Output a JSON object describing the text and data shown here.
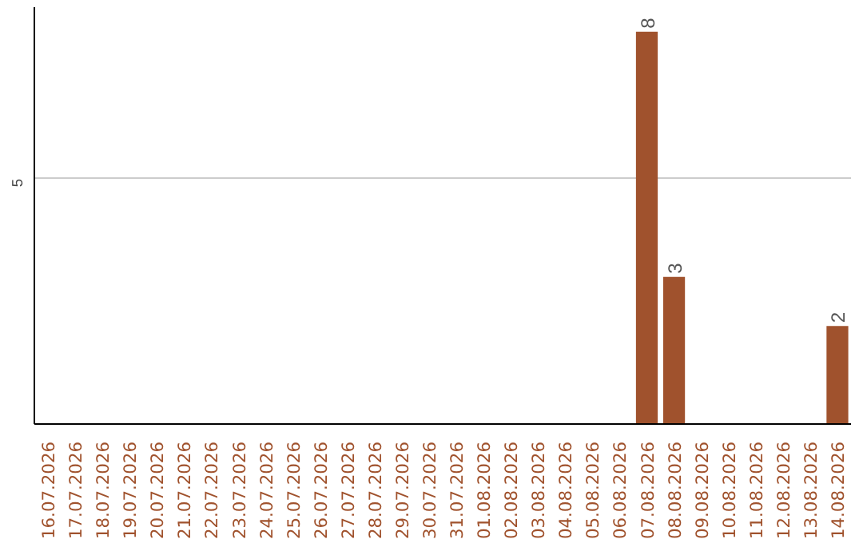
{
  "chart_data": {
    "type": "bar",
    "categories": [
      "16.07.2026",
      "17.07.2026",
      "18.07.2026",
      "19.07.2026",
      "20.07.2026",
      "21.07.2026",
      "22.07.2026",
      "23.07.2026",
      "24.07.2026",
      "25.07.2026",
      "26.07.2026",
      "27.07.2026",
      "28.07.2026",
      "29.07.2026",
      "30.07.2026",
      "31.07.2026",
      "01.08.2026",
      "02.08.2026",
      "03.08.2026",
      "04.08.2026",
      "05.08.2026",
      "06.08.2026",
      "07.08.2026",
      "08.08.2026",
      "09.08.2026",
      "10.08.2026",
      "11.08.2026",
      "12.08.2026",
      "13.08.2026",
      "14.08.2026"
    ],
    "values": [
      null,
      null,
      null,
      null,
      null,
      null,
      null,
      null,
      null,
      null,
      null,
      null,
      null,
      null,
      null,
      null,
      null,
      null,
      null,
      null,
      null,
      null,
      8,
      3,
      null,
      null,
      null,
      null,
      null,
      2
    ],
    "color": "#a0522d",
    "ylim": [
      0,
      8.5
    ],
    "yticks": [
      5
    ],
    "grid": "y",
    "data_labels": true
  }
}
